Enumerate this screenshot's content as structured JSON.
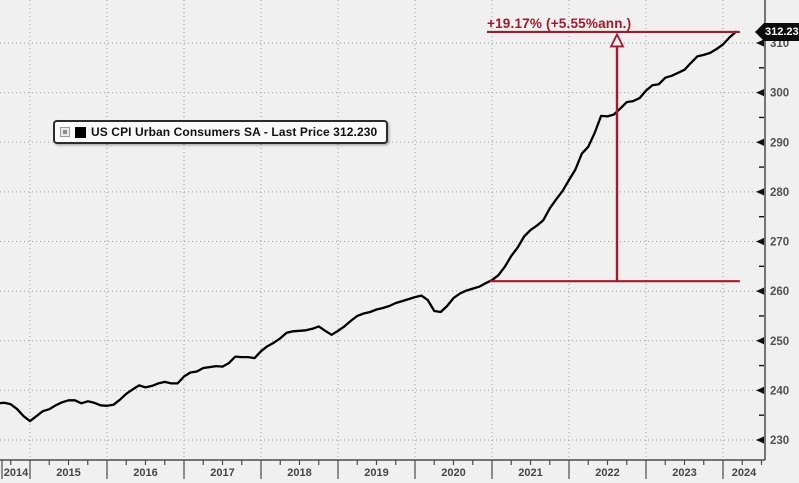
{
  "legend": {
    "series_label": "US CPI Urban Consumers SA - Last Price 312.230",
    "swatch_color": "#000000"
  },
  "annotation": {
    "label": "+19.17% (+5.55%ann.)",
    "color": "#9f1b2d",
    "baseline_value": 262.0,
    "top_value": 312.23
  },
  "last_price_badge": {
    "value": "312.230"
  },
  "chart_data": {
    "type": "line",
    "title": "US CPI Urban Consumers SA - Last Price 312.230",
    "xlabel": "",
    "ylabel": "",
    "legend_position": "upper-left-inside",
    "grid": "dotted",
    "line_color": "#000000",
    "frequency": "monthly",
    "x_start_month": "2014-08",
    "x_end_month": "2024-03",
    "x_tick_labels": [
      "2014",
      "2015",
      "2016",
      "2017",
      "2018",
      "2019",
      "2020",
      "2021",
      "2022",
      "2023",
      "2024"
    ],
    "y_ticks": [
      230,
      240,
      250,
      260,
      270,
      280,
      290,
      300,
      310
    ],
    "y_minor_tick_step": 5,
    "ylim": [
      226.0,
      318.7
    ],
    "last_price": 312.23,
    "series": [
      {
        "name": "US CPI Urban Consumers SA",
        "values": [
          237.4,
          237.5,
          237.2,
          236.2,
          234.8,
          233.8,
          234.8,
          235.8,
          236.2,
          237.0,
          237.6,
          238.0,
          238.0,
          237.4,
          237.8,
          237.5,
          237.0,
          236.9,
          237.1,
          238.1,
          239.3,
          240.2,
          241.0,
          240.6,
          240.9,
          241.4,
          241.7,
          241.4,
          241.4,
          242.8,
          243.6,
          243.8,
          244.5,
          244.7,
          244.9,
          244.8,
          245.5,
          246.8,
          246.7,
          246.7,
          246.5,
          247.9,
          248.9,
          249.6,
          250.5,
          251.6,
          251.9,
          252.0,
          252.1,
          252.4,
          252.9,
          252.0,
          251.2,
          252.0,
          252.9,
          254.0,
          255.0,
          255.5,
          255.8,
          256.3,
          256.6,
          257.0,
          257.6,
          258.0,
          258.4,
          258.8,
          259.1,
          258.2,
          256.0,
          255.8,
          257.0,
          258.6,
          259.5,
          260.1,
          260.5,
          260.9,
          261.6,
          262.2,
          263.2,
          264.9,
          267.1,
          268.8,
          271.0,
          272.3,
          273.2,
          274.3,
          276.7,
          278.5,
          280.2,
          282.4,
          284.5,
          287.7,
          289.1,
          291.9,
          295.3,
          295.2,
          295.6,
          296.8,
          298.1,
          298.3,
          298.9,
          300.4,
          301.5,
          301.7,
          303.0,
          303.4,
          304.0,
          304.6,
          306.0,
          307.3,
          307.6,
          308.0,
          308.8,
          309.7,
          311.1,
          312.23
        ]
      }
    ],
    "annotation": {
      "text": "+19.17% (+5.55%ann.)",
      "baseline_value": 262.0,
      "top_value": 312.23,
      "color": "#9f1b2d"
    }
  }
}
